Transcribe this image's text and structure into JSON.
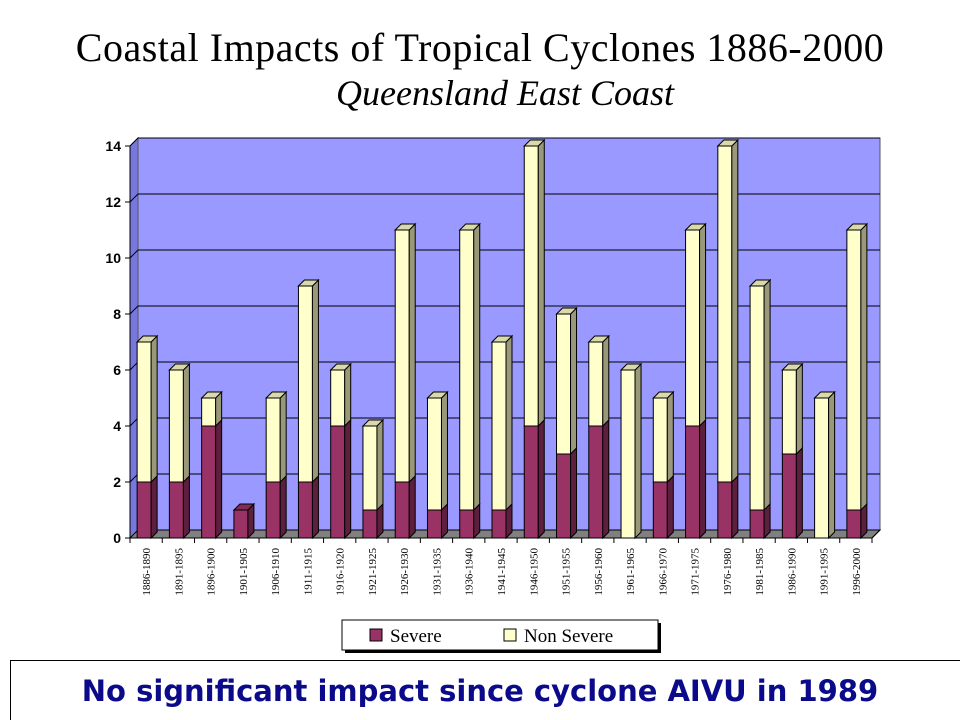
{
  "title": "Coastal Impacts of Tropical Cyclones 1886-2000",
  "subtitle": "Queensland East Coast",
  "footer": "No significant impact since cyclone AIVU in 1989",
  "colors": {
    "severe": "#993366",
    "non_severe": "#ffffcc",
    "plot_background": "#9999ff",
    "floor": "#808080"
  },
  "chart_data": {
    "type": "bar",
    "stacked": true,
    "categories": [
      "1886-1890",
      "1891-1895",
      "1896-1900",
      "1901-1905",
      "1906-1910",
      "1911-1915",
      "1916-1920",
      "1921-1925",
      "1926-1930",
      "1931-1935",
      "1936-1940",
      "1941-1945",
      "1946-1950",
      "1951-1955",
      "1956-1960",
      "1961-1965",
      "1966-1970",
      "1971-1975",
      "1976-1980",
      "1981-1985",
      "1986-1990",
      "1991-1995",
      "1996-2000"
    ],
    "series": [
      {
        "name": "Severe",
        "values": [
          2,
          2,
          4,
          1,
          2,
          2,
          4,
          1,
          2,
          1,
          1,
          1,
          4,
          3,
          4,
          0,
          2,
          4,
          2,
          1,
          3,
          0,
          1
        ]
      },
      {
        "name": "Non Severe",
        "values": [
          5,
          4,
          1,
          0,
          3,
          7,
          2,
          3,
          9,
          4,
          10,
          6,
          10,
          5,
          3,
          6,
          3,
          7,
          12,
          8,
          3,
          5,
          10
        ]
      }
    ],
    "yticks": [
      "0",
      "2",
      "4",
      "6",
      "8",
      "10",
      "12",
      "14"
    ],
    "ylim": [
      0,
      14
    ],
    "grid": true,
    "legend": "bottom"
  }
}
